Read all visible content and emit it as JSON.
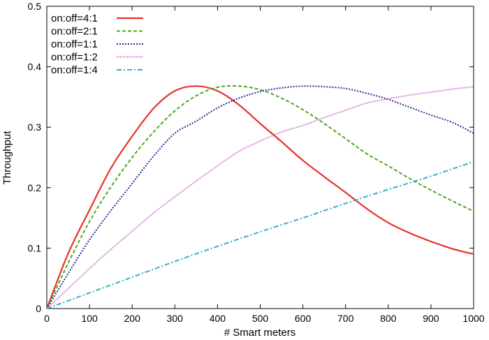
{
  "chart_data": {
    "type": "line",
    "xlabel": "# Smart meters",
    "ylabel": "Throughput",
    "xlim": [
      0,
      1000
    ],
    "ylim": [
      0,
      0.5
    ],
    "xticks": [
      0,
      100,
      200,
      300,
      400,
      500,
      600,
      700,
      800,
      900,
      1000
    ],
    "yticks": [
      0,
      0.1,
      0.2,
      0.3,
      0.4,
      0.5
    ],
    "grid": false,
    "legend_position": "top-left",
    "series": [
      {
        "name": "on:off=4:1",
        "color": "#e8312a",
        "dash": "solid",
        "x": [
          0,
          50,
          100,
          150,
          200,
          250,
          300,
          350,
          400,
          450,
          500,
          550,
          600,
          650,
          700,
          750,
          800,
          850,
          900,
          950,
          1000
        ],
        "y": [
          0,
          0.091,
          0.163,
          0.232,
          0.285,
          0.331,
          0.36,
          0.368,
          0.36,
          0.337,
          0.306,
          0.276,
          0.245,
          0.218,
          0.192,
          0.165,
          0.142,
          0.125,
          0.111,
          0.099,
          0.09
        ]
      },
      {
        "name": "on:off=2:1",
        "color": "#4ea71d",
        "dash": "5,3",
        "x": [
          0,
          50,
          100,
          150,
          200,
          250,
          300,
          350,
          400,
          450,
          500,
          550,
          600,
          650,
          700,
          750,
          800,
          850,
          900,
          950,
          1000
        ],
        "y": [
          0,
          0.075,
          0.144,
          0.201,
          0.25,
          0.292,
          0.327,
          0.352,
          0.366,
          0.368,
          0.362,
          0.348,
          0.329,
          0.306,
          0.281,
          0.256,
          0.236,
          0.215,
          0.196,
          0.178,
          0.161
        ]
      },
      {
        "name": "on:off=1:1",
        "color": "#2a2a9a",
        "dash": "2,2",
        "x": [
          0,
          50,
          100,
          150,
          200,
          250,
          300,
          350,
          400,
          450,
          500,
          550,
          600,
          650,
          700,
          750,
          800,
          850,
          900,
          950,
          1000
        ],
        "y": [
          0,
          0.058,
          0.114,
          0.162,
          0.207,
          0.252,
          0.29,
          0.31,
          0.332,
          0.348,
          0.359,
          0.365,
          0.368,
          0.367,
          0.364,
          0.356,
          0.346,
          0.333,
          0.32,
          0.308,
          0.29
        ]
      },
      {
        "name": "on:off=1:2",
        "color": "#c24fc2",
        "dash": "1,1.5",
        "x": [
          0,
          50,
          100,
          150,
          200,
          250,
          300,
          350,
          400,
          450,
          500,
          550,
          600,
          650,
          700,
          750,
          800,
          850,
          900,
          950,
          1000
        ],
        "y": [
          0,
          0.033,
          0.066,
          0.098,
          0.128,
          0.158,
          0.185,
          0.211,
          0.236,
          0.26,
          0.277,
          0.292,
          0.303,
          0.316,
          0.328,
          0.34,
          0.347,
          0.353,
          0.358,
          0.363,
          0.367
        ]
      },
      {
        "name": "on:off=1:4",
        "color": "#35b0c2",
        "dash": "7,3,2,3",
        "x": [
          0,
          100,
          200,
          300,
          400,
          500,
          600,
          700,
          800,
          900,
          1000
        ],
        "y": [
          0,
          0.026,
          0.052,
          0.078,
          0.103,
          0.127,
          0.15,
          0.174,
          0.197,
          0.219,
          0.243
        ]
      }
    ]
  }
}
